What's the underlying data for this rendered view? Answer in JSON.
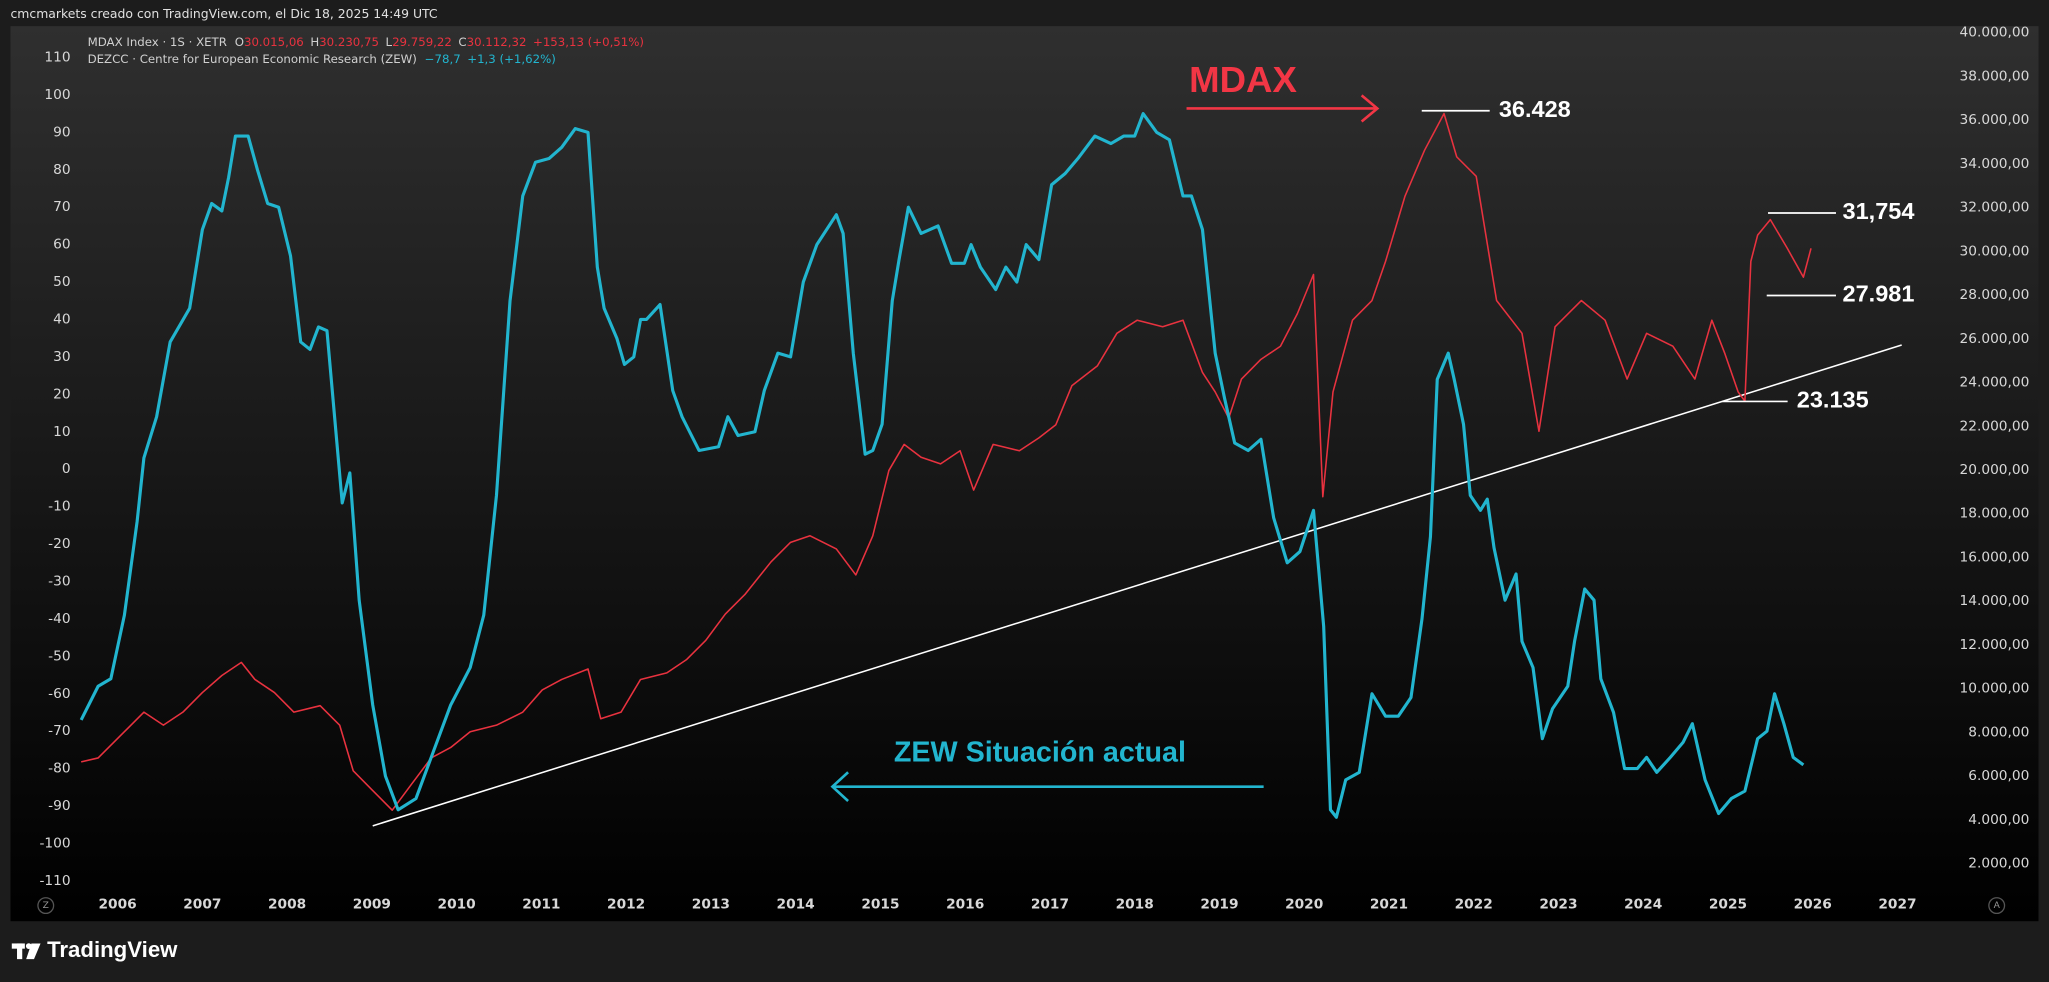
{
  "header": "cmcmarkets creado con TradingView.com, el Dic 18, 2025 14:49 UTC",
  "footer_logo": "TradingView",
  "controls": [
    "Z",
    "A"
  ],
  "chart_data": {
    "type": "line",
    "xlim": [
      2004.736,
      2027.585
    ],
    "xticks": [
      2006,
      2007,
      2008,
      2009,
      2010,
      2011,
      2012,
      2013,
      2014,
      2015,
      2016,
      2017,
      2018,
      2019,
      2020,
      2021,
      2022,
      2023,
      2024,
      2025,
      2026,
      2027
    ],
    "ylim": [
      -113.1,
      118.38
    ],
    "yticks": [
      -110,
      -100,
      -90,
      -80,
      -70,
      -60,
      -50,
      -40,
      -30,
      -20,
      -10,
      0,
      10,
      20,
      30,
      40,
      50,
      60,
      70,
      80,
      90,
      100,
      110
    ],
    "y2lim": [
      677,
      40299
    ],
    "y2ticks": [
      {
        "value": 2000,
        "label": "2.000,00"
      },
      {
        "value": 4000,
        "label": "4.000,00"
      },
      {
        "value": 6000,
        "label": "6.000,00"
      },
      {
        "value": 8000,
        "label": "8.000,00"
      },
      {
        "value": 10000,
        "label": "10.000,00"
      },
      {
        "value": 12000,
        "label": "12.000,00"
      },
      {
        "value": 14000,
        "label": "14.000,00"
      },
      {
        "value": 16000,
        "label": "16.000,00"
      },
      {
        "value": 18000,
        "label": "18.000,00"
      },
      {
        "value": 20000,
        "label": "20.000,00"
      },
      {
        "value": 22000,
        "label": "22.000,00"
      },
      {
        "value": 24000,
        "label": "24.000,00"
      },
      {
        "value": 26000,
        "label": "26.000,00"
      },
      {
        "value": 28000,
        "label": "28.000,00"
      },
      {
        "value": 30000,
        "label": "30.000,00"
      },
      {
        "value": 32000,
        "label": "32.000,00"
      },
      {
        "value": 34000,
        "label": "34.000,00"
      },
      {
        "value": 36000,
        "label": "36.000,00"
      },
      {
        "value": 38000,
        "label": "38.000,00"
      },
      {
        "value": 40000,
        "label": "40.000,00"
      }
    ],
    "grid": false,
    "series": [
      {
        "name": "MDAX Index · 1S · XETR",
        "color": "#e8323f",
        "axis": "y2",
        "legend": {
          "o_key": "O",
          "o": "30.015,06",
          "h_key": "H",
          "h": "30.230,75",
          "l_key": "L",
          "l": "29.759,22",
          "c_key": "C",
          "c": "30.112,32",
          "change": "+153,13 (+0,51%)"
        },
        "x": [
          2005.57,
          2005.77,
          2006.08,
          2006.31,
          2006.54,
          2006.77,
          2007.0,
          2007.23,
          2007.46,
          2007.62,
          2007.85,
          2008.08,
          2008.39,
          2008.62,
          2008.78,
          2009.01,
          2009.24,
          2009.47,
          2009.7,
          2009.93,
          2010.16,
          2010.47,
          2010.78,
          2011.01,
          2011.24,
          2011.55,
          2011.7,
          2011.94,
          2012.17,
          2012.48,
          2012.71,
          2012.94,
          2013.17,
          2013.4,
          2013.71,
          2013.94,
          2014.17,
          2014.48,
          2014.71,
          2014.91,
          2015.1,
          2015.28,
          2015.48,
          2015.71,
          2015.94,
          2016.1,
          2016.33,
          2016.64,
          2016.87,
          2017.07,
          2017.26,
          2017.56,
          2017.79,
          2018.03,
          2018.33,
          2018.57,
          2018.8,
          2018.95,
          2019.11,
          2019.26,
          2019.49,
          2019.72,
          2019.92,
          2020.11,
          2020.22,
          2020.34,
          2020.57,
          2020.8,
          2020.96,
          2021.19,
          2021.42,
          2021.65,
          2021.8,
          2022.03,
          2022.27,
          2022.57,
          2022.77,
          2022.96,
          2023.27,
          2023.55,
          2023.81,
          2024.04,
          2024.35,
          2024.61,
          2024.81,
          2024.96,
          2025.12,
          2025.2,
          2025.27,
          2025.35,
          2025.5,
          2025.7,
          2025.89,
          2025.98
        ],
        "values": [
          6650,
          6830,
          8030,
          8925,
          8330,
          8925,
          9820,
          10600,
          11200,
          10420,
          9820,
          8925,
          9220,
          8330,
          6240,
          5340,
          4440,
          5640,
          6830,
          7310,
          8030,
          8330,
          8925,
          9940,
          10420,
          10900,
          8625,
          8925,
          10420,
          10720,
          11320,
          12210,
          13410,
          14300,
          15800,
          16690,
          16990,
          16390,
          15200,
          16990,
          19980,
          21170,
          20580,
          20280,
          20880,
          19080,
          21170,
          20880,
          21470,
          22070,
          23860,
          24760,
          26250,
          26850,
          26550,
          26850,
          24460,
          23570,
          22370,
          24160,
          25060,
          25660,
          27150,
          28940,
          18780,
          23570,
          26850,
          27750,
          29540,
          32530,
          34620,
          36300,
          34320,
          33430,
          27750,
          26250,
          21770,
          26550,
          27750,
          26850,
          24160,
          26250,
          25660,
          24160,
          26850,
          25360,
          23570,
          23150,
          29540,
          30740,
          31450,
          30140,
          28820,
          30140
        ]
      },
      {
        "name": "DEZCC · Centre for European Economic Research (ZEW)",
        "color": "#22b5cf",
        "axis": "y",
        "legend": {
          "last": "−78,7",
          "change": "+1,3 (+1,62%)"
        },
        "x": [
          2005.57,
          2005.77,
          2005.92,
          2006.08,
          2006.23,
          2006.31,
          2006.46,
          2006.62,
          2006.85,
          2007.0,
          2007.11,
          2007.23,
          2007.31,
          2007.39,
          2007.54,
          2007.65,
          2007.77,
          2007.9,
          2008.04,
          2008.16,
          2008.27,
          2008.37,
          2008.47,
          2008.65,
          2008.74,
          2008.85,
          2009.01,
          2009.16,
          2009.31,
          2009.52,
          2009.7,
          2009.93,
          2010.16,
          2010.32,
          2010.47,
          2010.63,
          2010.78,
          2010.93,
          2011.09,
          2011.24,
          2011.4,
          2011.55,
          2011.66,
          2011.74,
          2011.89,
          2011.98,
          2012.09,
          2012.17,
          2012.24,
          2012.4,
          2012.55,
          2012.66,
          2012.86,
          2013.09,
          2013.2,
          2013.32,
          2013.52,
          2013.63,
          2013.79,
          2013.94,
          2014.09,
          2014.25,
          2014.48,
          2014.56,
          2014.68,
          2014.82,
          2014.91,
          2015.02,
          2015.14,
          2015.22,
          2015.33,
          2015.48,
          2015.68,
          2015.84,
          2015.99,
          2016.07,
          2016.18,
          2016.36,
          2016.48,
          2016.61,
          2016.72,
          2016.87,
          2017.02,
          2017.18,
          2017.33,
          2017.53,
          2017.72,
          2017.87,
          2018.0,
          2018.1,
          2018.26,
          2018.41,
          2018.57,
          2018.67,
          2018.8,
          2018.95,
          2019.06,
          2019.18,
          2019.34,
          2019.49,
          2019.64,
          2019.8,
          2019.95,
          2020.11,
          2020.23,
          2020.31,
          2020.38,
          2020.49,
          2020.65,
          2020.8,
          2020.96,
          2021.11,
          2021.26,
          2021.39,
          2021.49,
          2021.57,
          2021.7,
          2021.77,
          2021.88,
          2021.96,
          2022.08,
          2022.16,
          2022.24,
          2022.37,
          2022.5,
          2022.57,
          2022.7,
          2022.81,
          2022.93,
          2023.11,
          2023.19,
          2023.31,
          2023.42,
          2023.5,
          2023.65,
          2023.78,
          2023.93,
          2024.04,
          2024.16,
          2024.32,
          2024.47,
          2024.58,
          2024.73,
          2024.89,
          2025.04,
          2025.2,
          2025.35,
          2025.46,
          2025.55,
          2025.66,
          2025.77,
          2025.89
        ],
        "values": [
          -67,
          -58,
          -56,
          -39,
          -14,
          3,
          14,
          34,
          43,
          64,
          71,
          69,
          78,
          89,
          89,
          80,
          71,
          70,
          57,
          34,
          32,
          38,
          37,
          -9,
          -1,
          -35,
          -63,
          -82,
          -91,
          -88,
          -77,
          -63,
          -53,
          -39,
          -7,
          45,
          73,
          82,
          83,
          86,
          91,
          90,
          54,
          43,
          35,
          28,
          30,
          40,
          40,
          44,
          21,
          14,
          5,
          6,
          14,
          9,
          10,
          21,
          31,
          30,
          50,
          60,
          68,
          63,
          31,
          4,
          5,
          12,
          45,
          56,
          70,
          63,
          65,
          55,
          55,
          60,
          54,
          48,
          54,
          50,
          60,
          56,
          76,
          79,
          83,
          89,
          87,
          89,
          89,
          95,
          90,
          88,
          73,
          73,
          64,
          31,
          19,
          7,
          5,
          8,
          -13,
          -25,
          -22,
          -11,
          -42,
          -91,
          -93,
          -83,
          -81,
          -60,
          -66,
          -66,
          -61,
          -40,
          -18,
          24,
          31,
          24,
          12,
          -7,
          -11,
          -8,
          -21,
          -35,
          -28,
          -46,
          -53,
          -72,
          -64,
          -58,
          -46,
          -32,
          -35,
          -56,
          -65,
          -80,
          -80,
          -77,
          -81,
          -77,
          -73,
          -68,
          -83,
          -92,
          -88,
          -86,
          -72,
          -70,
          -60,
          -68,
          -77,
          -79
        ]
      }
    ],
    "trendline": {
      "color": "#ffffff",
      "axis": "y2",
      "x": [
        2009.01,
        2027.05
      ],
      "values": [
        3725,
        25717
      ]
    },
    "levels": [
      {
        "value": 36428,
        "label": "36.428"
      },
      {
        "value": 31754,
        "label": "31,754"
      },
      {
        "value": 27981,
        "label": "27.981"
      },
      {
        "value": 23135,
        "label": "23.135"
      }
    ],
    "annotations": [
      {
        "text": "MDAX",
        "color": "#f23645"
      },
      {
        "text": "ZEW Situación actual",
        "color": "#22b5cf"
      }
    ]
  }
}
